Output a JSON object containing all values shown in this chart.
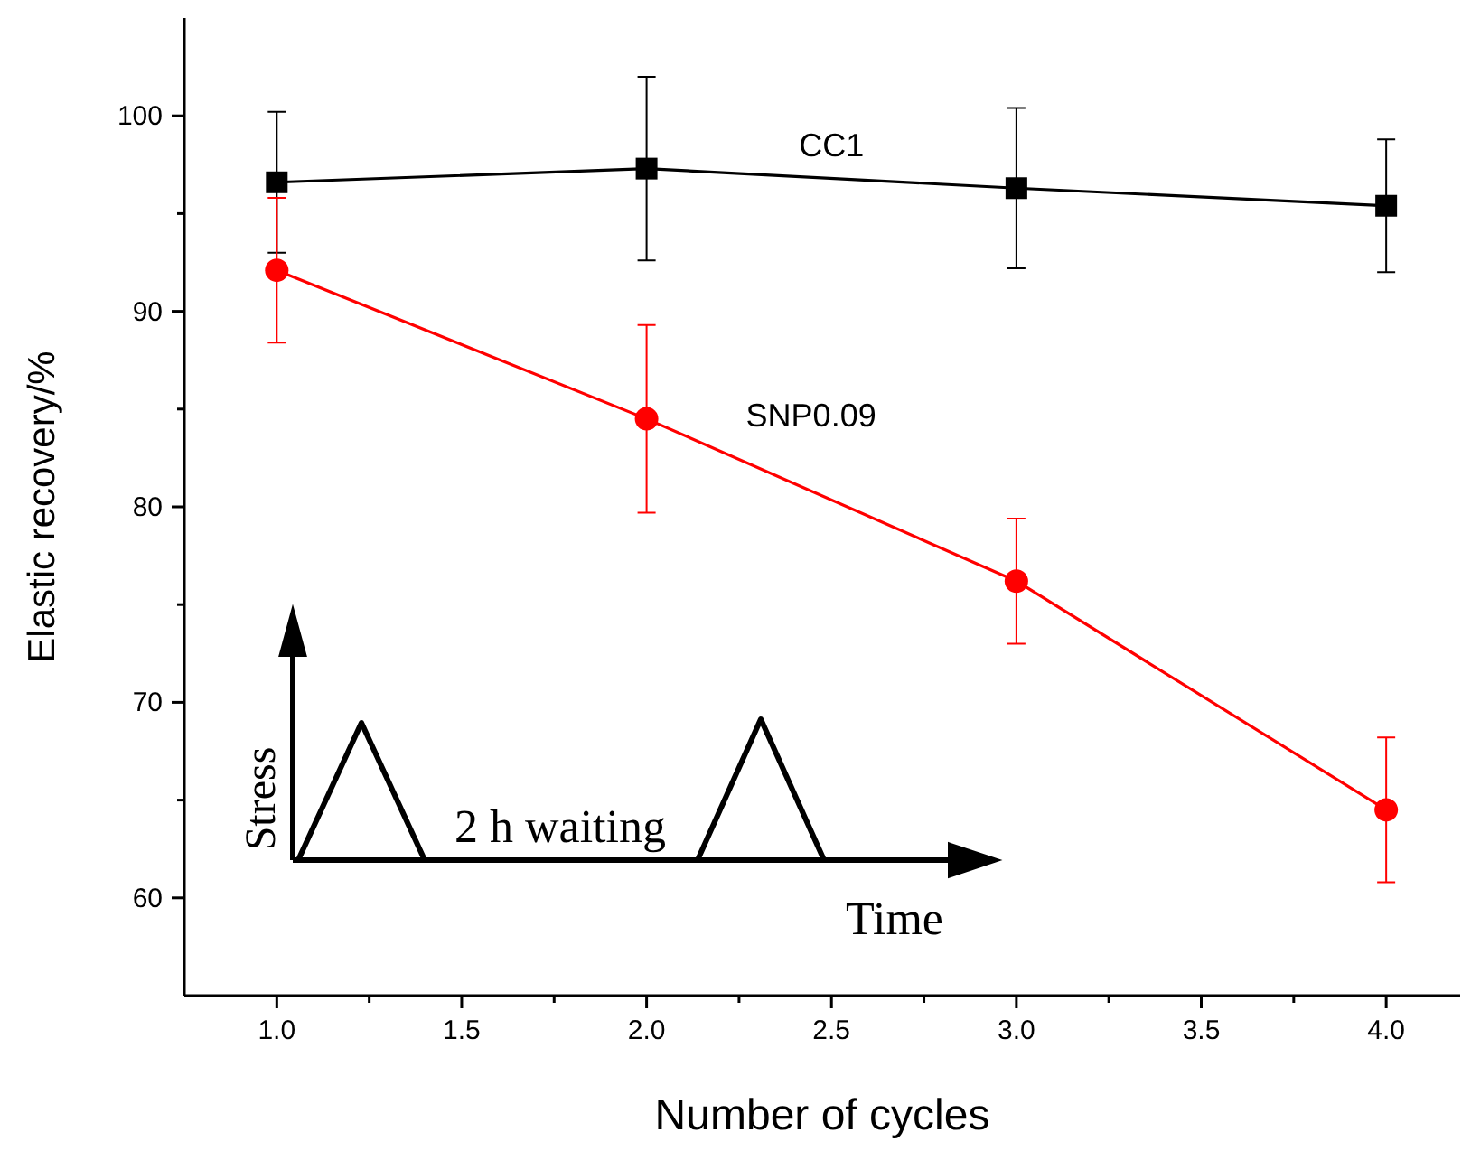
{
  "chart_data": {
    "type": "line",
    "xlabel": "Number of cycles",
    "ylabel": "Elastic recovery/%",
    "x": [
      1,
      2,
      3,
      4
    ],
    "series": [
      {
        "name": "CC1",
        "color": "#000000",
        "marker": "square",
        "values": [
          96.6,
          97.3,
          96.3,
          95.4
        ],
        "errors": [
          3.6,
          4.7,
          4.1,
          3.4
        ]
      },
      {
        "name": "SNP0.09",
        "color": "#ff0000",
        "marker": "circle",
        "values": [
          92.1,
          84.5,
          76.2,
          64.5
        ],
        "errors": [
          3.7,
          4.8,
          3.2,
          3.7
        ]
      }
    ],
    "xlim": [
      0.75,
      4.2
    ],
    "ylim": [
      55,
      105
    ],
    "xticks": [
      {
        "value": 1,
        "label": "1.0"
      },
      {
        "value": 1.25,
        "label": null
      },
      {
        "value": 1.5,
        "label": "1.5"
      },
      {
        "value": 1.75,
        "label": null
      },
      {
        "value": 2,
        "label": "2.0"
      },
      {
        "value": 2.25,
        "label": null
      },
      {
        "value": 2.5,
        "label": "2.5"
      },
      {
        "value": 2.75,
        "label": null
      },
      {
        "value": 3,
        "label": "3.0"
      },
      {
        "value": 3.25,
        "label": null
      },
      {
        "value": 3.5,
        "label": "3.5"
      },
      {
        "value": 3.75,
        "label": null
      },
      {
        "value": 4,
        "label": "4.0"
      }
    ],
    "yticks": [
      60,
      {
        "value": 65,
        "label": null
      },
      70,
      {
        "value": 75,
        "label": null
      },
      80,
      {
        "value": 85,
        "label": null
      },
      90,
      {
        "value": 95,
        "label": null
      },
      100
    ],
    "annotations": [
      "Stress",
      "2 h waiting",
      "Time"
    ],
    "grid": false
  }
}
